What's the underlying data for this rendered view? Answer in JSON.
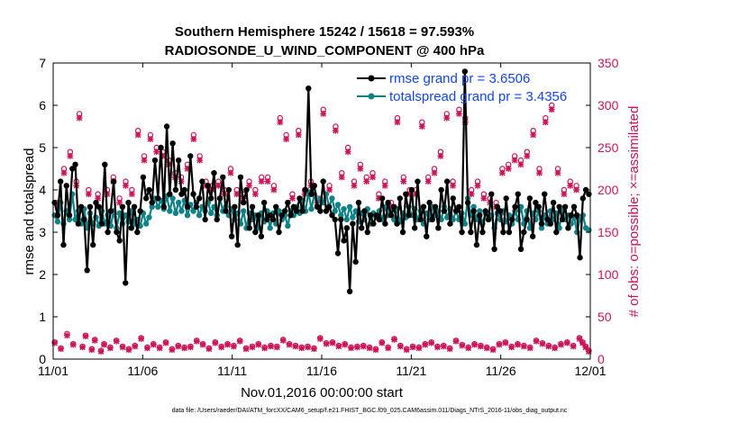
{
  "chart_data": {
    "type": "line",
    "title": "Southern Hemisphere 15242 / 15618 = 97.593%",
    "subtitle": "RADIOSONDE_U_WIND_COMPONENT @ 400 hPa",
    "xlabel": "Nov.01,2016 00:00:00 start",
    "ylabel": "rmse and totalspread",
    "y2label": "# of obs: o=possible; ×=assimilated",
    "footer": "data file: /Users/raeder/DAI/ATM_forcXX/CAM6_setup/f.e21.FHIST_BGC.f09_025.CAM6assim.011/Diags_NTrS_2016-11/obs_diag_output.nc",
    "xlim": [
      0,
      30
    ],
    "ylim": [
      0,
      7
    ],
    "y2lim": [
      0,
      350
    ],
    "xticks": [
      0,
      5,
      10,
      15,
      20,
      25,
      30
    ],
    "xticklabels": [
      "11/01",
      "11/06",
      "11/11",
      "11/16",
      "11/21",
      "11/26",
      "12/01"
    ],
    "yticks": [
      0,
      1,
      2,
      3,
      4,
      5,
      6,
      7
    ],
    "y2ticks": [
      0,
      50,
      100,
      150,
      200,
      250,
      300,
      350
    ],
    "legend_position": "top-right",
    "series": [
      {
        "name": "rmse",
        "legend": "rmse grand pr = 3.6506",
        "color": "#000000",
        "marker": "circle",
        "values": [
          3.7,
          3.4,
          4.2,
          2.7,
          4.1,
          3.4,
          4.5,
          4.6,
          3.2,
          3.6,
          3.3,
          2.1,
          3.6,
          2.7,
          3.7,
          3.6,
          3.2,
          4.6,
          3.0,
          3.5,
          4.2,
          3.0,
          2.8,
          3.6,
          1.8,
          3.7,
          3.1,
          3.6,
          3.0,
          3.5,
          4.3,
          3.8,
          4.0,
          3.7,
          4.7,
          3.8,
          5.0,
          3.6,
          5.5,
          3.9,
          5.1,
          4.0,
          4.7,
          3.9,
          4.0,
          3.6,
          4.8,
          3.9,
          3.6,
          3.8,
          4.2,
          3.3,
          4.1,
          3.8,
          4.4,
          3.3,
          3.8,
          4.3,
          3.5,
          4.0,
          2.9,
          3.6,
          2.7,
          4.3,
          3.7,
          4.0,
          3.1,
          3.6,
          3.0,
          3.4,
          2.9,
          3.7,
          3.3,
          3.4,
          3.3,
          3.6,
          3.0,
          3.4,
          3.5,
          3.7,
          3.4,
          3.6,
          3.5,
          3.8,
          3.5,
          4.0,
          6.4,
          3.9,
          4.1,
          3.6,
          3.5,
          4.2,
          3.5,
          3.6,
          3.4,
          3.3,
          2.5,
          3.3,
          2.8,
          3.1,
          1.6,
          3.2,
          2.3,
          3.7,
          3.1,
          3.5,
          3.0,
          3.4,
          3.2,
          3.4,
          3.3,
          3.8,
          3.2,
          3.7,
          3.4,
          3.6,
          3.2,
          3.8,
          3.0,
          3.9,
          3.4,
          4.0,
          3.1,
          4.2,
          3.3,
          3.6,
          2.9,
          3.7,
          3.3,
          3.6,
          3.1,
          4.0,
          3.5,
          4.2,
          3.2,
          3.8,
          3.5,
          3.6,
          3.0,
          6.8,
          3.7,
          3.0,
          3.5,
          2.7,
          3.4,
          3.0,
          3.5,
          3.3,
          3.9,
          2.6,
          3.6,
          3.5,
          3.0,
          3.8,
          3.0,
          3.3,
          3.6,
          3.9,
          2.6,
          3.0,
          3.3,
          3.8,
          2.9,
          3.7,
          3.6,
          3.2,
          3.9,
          3.3,
          3.2,
          3.7,
          3.0,
          3.6,
          3.3,
          3.6,
          3.1,
          3.4,
          3.6,
          3.4,
          2.4,
          3.8,
          4.0,
          3.9
        ]
      },
      {
        "name": "totalspread",
        "legend": "totalspread grand pr = 3.4356",
        "color": "#0f8287",
        "marker": "circle",
        "values": [
          3.4,
          3.25,
          3.7,
          3.2,
          3.5,
          3.3,
          3.9,
          3.3,
          3.5,
          3.2,
          3.55,
          3.1,
          3.45,
          3.2,
          3.35,
          3.15,
          3.5,
          3.2,
          3.4,
          3.15,
          3.5,
          3.1,
          3.45,
          3.2,
          3.4,
          3.25,
          3.5,
          3.2,
          3.3,
          3.15,
          3.45,
          3.2,
          3.35,
          3.6,
          3.8,
          3.6,
          3.75,
          3.55,
          3.85,
          3.5,
          3.8,
          3.45,
          3.7,
          3.5,
          3.75,
          3.4,
          3.65,
          3.5,
          3.7,
          3.4,
          3.6,
          3.5,
          3.7,
          3.45,
          3.6,
          3.4,
          3.8,
          3.5,
          3.6,
          3.4,
          3.55,
          3.3,
          3.45,
          3.2,
          3.5,
          3.1,
          3.45,
          3.3,
          3.4,
          3.1,
          3.45,
          3.25,
          3.5,
          3.1,
          3.45,
          3.2,
          3.5,
          3.3,
          3.4,
          3.15,
          3.5,
          3.4,
          3.6,
          3.45,
          3.75,
          3.5,
          3.95,
          3.55,
          3.9,
          3.6,
          3.8,
          3.7,
          3.9,
          3.6,
          3.8,
          3.5,
          3.65,
          3.4,
          3.55,
          3.3,
          3.6,
          3.35,
          3.5,
          3.25,
          3.45,
          3.3,
          3.55,
          3.2,
          3.45,
          3.35,
          3.5,
          3.3,
          3.6,
          3.4,
          3.5,
          3.3,
          3.55,
          3.25,
          3.45,
          3.35,
          3.6,
          3.4,
          3.55,
          3.3,
          3.5,
          3.2,
          3.45,
          3.3,
          3.6,
          3.4,
          3.5,
          3.3,
          3.6,
          3.35,
          3.55,
          3.3,
          3.5,
          3.3,
          3.45,
          3.2,
          3.8,
          3.4,
          3.6,
          3.3,
          3.5,
          3.2,
          3.45,
          3.3,
          3.4,
          3.1,
          3.45,
          3.3,
          3.5,
          3.25,
          3.4,
          3.2,
          3.5,
          3.3,
          3.6,
          3.2,
          3.5,
          3.1,
          3.45,
          3.3,
          3.5,
          3.1,
          3.4,
          3.2,
          3.5,
          3.3,
          3.45,
          3.1,
          3.5,
          3.3,
          3.4,
          3.2,
          3.35,
          3.0,
          3.3,
          3.4,
          3.1,
          3.05
        ]
      }
    ],
    "obs_series": [
      {
        "name": "possible",
        "marker": "o",
        "color": "#cc1459",
        "values": [
          20,
          185,
          13,
          225,
          30,
          245,
          18,
          210,
          290,
          15,
          28,
          200,
          12,
          23,
          195,
          10,
          18,
          200,
          14,
          215,
          22,
          190,
          15,
          210,
          12,
          200,
          16,
          270,
          25,
          240,
          14,
          265,
          18,
          250,
          14,
          245,
          20,
          235,
          12,
          220,
          16,
          215,
          14,
          230,
          15,
          265,
          22,
          240,
          18,
          210,
          13,
          205,
          20,
          210,
          15,
          200,
          18,
          225,
          16,
          200,
          22,
          195,
          13,
          210,
          15,
          200,
          18,
          215,
          14,
          215,
          16,
          205,
          15,
          285,
          23,
          265,
          18,
          195,
          16,
          270,
          14,
          200,
          15,
          210,
          13,
          190,
          25,
          295,
          19,
          205,
          20,
          275,
          16,
          220,
          18,
          250,
          14,
          210,
          15,
          230,
          16,
          215,
          14,
          220,
          12,
          195,
          20,
          210,
          14,
          185,
          24,
          285,
          16,
          215,
          12,
          200,
          15,
          200,
          14,
          280,
          18,
          215,
          20,
          225,
          15,
          245,
          16,
          290,
          13,
          210,
          22,
          295,
          17,
          285,
          14,
          200,
          18,
          210,
          16,
          195,
          14,
          190,
          12,
          185,
          18,
          225,
          20,
          230,
          15,
          240,
          18,
          235,
          16,
          245,
          14,
          270,
          22,
          225,
          19,
          285,
          16,
          300,
          14,
          225,
          18,
          200,
          20,
          210,
          16,
          205,
          25,
          20,
          15,
          10
        ]
      },
      {
        "name": "assimilated",
        "marker": "x",
        "color": "#cc1459",
        "values": [
          19,
          180,
          12,
          220,
          28,
          240,
          17,
          205,
          285,
          14,
          27,
          195,
          11,
          22,
          190,
          9,
          17,
          195,
          13,
          210,
          21,
          185,
          14,
          205,
          11,
          195,
          15,
          265,
          24,
          235,
          13,
          260,
          17,
          245,
          13,
          240,
          19,
          230,
          11,
          215,
          15,
          210,
          13,
          225,
          14,
          260,
          21,
          235,
          17,
          205,
          12,
          200,
          19,
          205,
          14,
          195,
          17,
          220,
          15,
          195,
          21,
          190,
          12,
          205,
          14,
          195,
          17,
          210,
          13,
          210,
          15,
          200,
          14,
          280,
          22,
          260,
          17,
          190,
          15,
          265,
          13,
          195,
          14,
          205,
          12,
          185,
          24,
          290,
          18,
          200,
          19,
          270,
          15,
          215,
          17,
          245,
          13,
          205,
          14,
          225,
          15,
          210,
          13,
          215,
          11,
          190,
          19,
          205,
          13,
          180,
          23,
          280,
          15,
          210,
          11,
          195,
          14,
          195,
          13,
          275,
          17,
          210,
          19,
          220,
          14,
          240,
          15,
          285,
          12,
          205,
          21,
          290,
          16,
          280,
          13,
          195,
          17,
          205,
          15,
          190,
          13,
          185,
          11,
          180,
          17,
          220,
          19,
          225,
          14,
          235,
          17,
          230,
          15,
          240,
          13,
          265,
          21,
          220,
          18,
          280,
          15,
          295,
          13,
          220,
          17,
          195,
          19,
          205,
          15,
          200,
          24,
          19,
          14,
          9
        ]
      }
    ]
  }
}
